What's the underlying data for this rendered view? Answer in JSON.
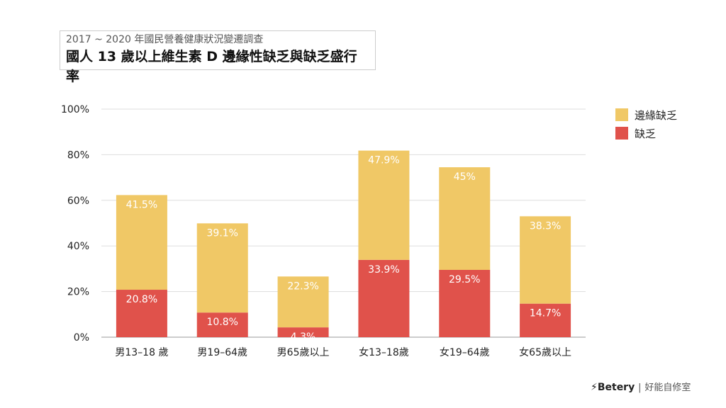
{
  "header": {
    "subtitle": "2017 ~ 2020 年國民營養健康狀況變遷調查",
    "title": "國人 13 歲以上維生素 D 邊緣性缺乏與缺乏盛行率"
  },
  "brand": {
    "logo": "⚡Betery",
    "sep": "|",
    "name": "好能自修室"
  },
  "chart_data": {
    "type": "bar",
    "stacked": true,
    "categories": [
      "男13–18 歲",
      "男19–64歲",
      "男65歲以上",
      "女13–18歲",
      "女19–64歲",
      "女65歲以上"
    ],
    "series": [
      {
        "name": "缺乏",
        "color": "#e0524b",
        "values": [
          20.8,
          10.8,
          4.3,
          33.9,
          29.5,
          14.7
        ],
        "labels": [
          "20.8%",
          "10.8%",
          "4.3%",
          "33.9%",
          "29.5%",
          "14.7%"
        ]
      },
      {
        "name": "邊緣缺乏",
        "color": "#f0c866",
        "values": [
          41.5,
          39.1,
          22.3,
          47.9,
          45,
          38.3
        ],
        "labels": [
          "41.5%",
          "39.1%",
          "22.3%",
          "47.9%",
          "45%",
          "38.3%"
        ]
      }
    ],
    "ylim": [
      0,
      100
    ],
    "yticks": [
      "0%",
      "20%",
      "40%",
      "60%",
      "80%",
      "100%"
    ],
    "grid": true,
    "legend": "right"
  }
}
